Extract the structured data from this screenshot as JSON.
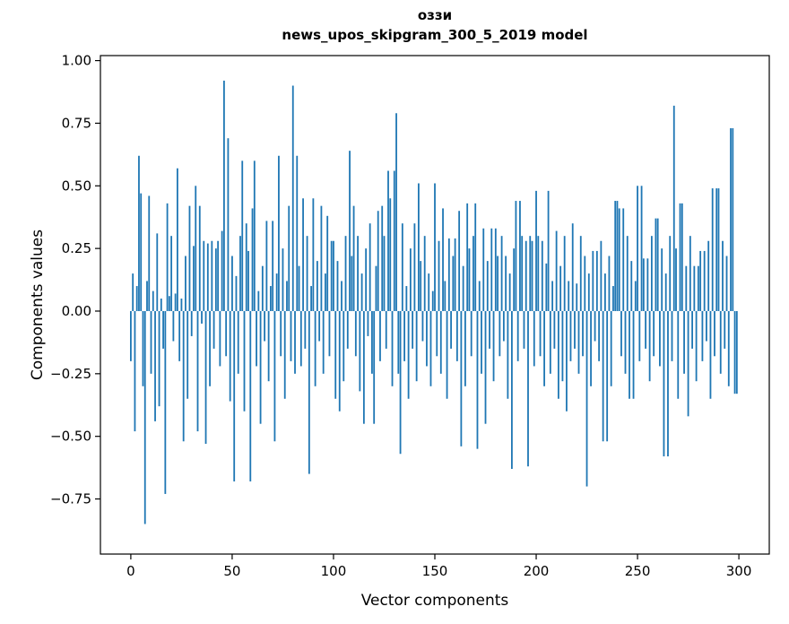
{
  "figure": {
    "title_line1": "оззи",
    "title_line2": "news_upos_skipgram_300_5_2019 model",
    "xlabel": "Vector components",
    "ylabel": "Components values"
  },
  "chart_data": {
    "type": "bar",
    "title": "оззи — news_upos_skipgram_300_5_2019 model",
    "xlabel": "Vector components",
    "ylabel": "Components values",
    "bar_color": "#1f77b4",
    "axis_color": "#000000",
    "grid": false,
    "legend": false,
    "n_components": 300,
    "xlim": [
      -15,
      315
    ],
    "ylim": [
      -0.97,
      1.02
    ],
    "xticks": [
      0,
      50,
      100,
      150,
      200,
      250,
      300
    ],
    "yticks": [
      -0.75,
      -0.5,
      -0.25,
      0.0,
      0.25,
      0.5,
      0.75,
      1.0
    ],
    "values": [
      -0.2,
      0.15,
      -0.48,
      0.1,
      0.62,
      0.47,
      -0.3,
      -0.85,
      0.12,
      0.46,
      -0.25,
      0.08,
      -0.44,
      0.31,
      -0.38,
      0.05,
      -0.15,
      -0.73,
      0.43,
      0.06,
      0.3,
      -0.12,
      0.07,
      0.57,
      -0.2,
      0.05,
      -0.52,
      0.22,
      -0.35,
      0.42,
      -0.1,
      0.26,
      0.5,
      -0.48,
      0.42,
      -0.05,
      0.28,
      -0.53,
      0.27,
      -0.3,
      0.28,
      -0.15,
      0.25,
      0.28,
      -0.22,
      0.32,
      0.92,
      -0.18,
      0.69,
      -0.36,
      0.22,
      -0.68,
      0.14,
      -0.25,
      0.3,
      0.6,
      -0.4,
      0.35,
      0.24,
      -0.68,
      0.41,
      0.6,
      -0.22,
      0.08,
      -0.45,
      0.18,
      -0.12,
      0.36,
      -0.28,
      0.1,
      0.36,
      -0.52,
      0.15,
      0.62,
      -0.18,
      0.25,
      -0.35,
      0.12,
      0.42,
      -0.2,
      0.9,
      -0.25,
      0.62,
      0.18,
      -0.22,
      0.45,
      -0.15,
      0.3,
      -0.65,
      0.1,
      0.45,
      -0.3,
      0.2,
      -0.12,
      0.42,
      -0.25,
      0.15,
      0.38,
      -0.18,
      0.28,
      0.28,
      -0.35,
      0.2,
      -0.4,
      0.12,
      -0.28,
      0.3,
      -0.15,
      0.64,
      0.22,
      0.42,
      -0.18,
      0.3,
      -0.32,
      0.15,
      -0.45,
      0.25,
      -0.1,
      0.35,
      -0.25,
      -0.45,
      0.18,
      0.4,
      -0.2,
      0.42,
      0.3,
      -0.15,
      0.56,
      0.45,
      -0.3,
      0.56,
      0.79,
      -0.25,
      -0.57,
      0.35,
      -0.2,
      0.1,
      -0.35,
      0.25,
      -0.15,
      0.35,
      -0.28,
      0.51,
      0.2,
      -0.12,
      0.3,
      -0.22,
      0.15,
      -0.3,
      0.08,
      0.51,
      -0.18,
      0.28,
      -0.25,
      0.41,
      0.12,
      -0.35,
      0.29,
      -0.15,
      0.22,
      0.29,
      -0.2,
      0.4,
      -0.54,
      0.18,
      -0.3,
      0.43,
      0.25,
      -0.18,
      0.3,
      0.43,
      -0.55,
      0.12,
      -0.25,
      0.33,
      -0.45,
      0.2,
      -0.15,
      0.33,
      -0.28,
      0.33,
      0.22,
      -0.18,
      0.3,
      -0.12,
      0.22,
      -0.35,
      0.15,
      -0.63,
      0.25,
      0.44,
      -0.2,
      0.44,
      0.3,
      -0.15,
      0.28,
      -0.62,
      0.3,
      0.28,
      -0.22,
      0.48,
      0.3,
      -0.18,
      0.28,
      -0.3,
      0.19,
      0.48,
      -0.25,
      0.12,
      -0.15,
      0.32,
      -0.35,
      0.18,
      -0.28,
      0.3,
      -0.4,
      0.12,
      -0.2,
      0.35,
      -0.15,
      0.11,
      -0.25,
      0.3,
      -0.18,
      0.22,
      -0.7,
      0.15,
      -0.3,
      0.24,
      -0.12,
      0.24,
      -0.2,
      0.28,
      -0.52,
      0.15,
      -0.52,
      0.22,
      -0.3,
      0.1,
      0.44,
      0.44,
      0.41,
      -0.18,
      0.41,
      -0.25,
      0.3,
      -0.35,
      0.2,
      -0.35,
      0.12,
      0.5,
      -0.2,
      0.5,
      0.21,
      -0.15,
      0.21,
      -0.28,
      0.3,
      -0.18,
      0.37,
      0.37,
      -0.22,
      0.25,
      -0.58,
      0.15,
      -0.58,
      0.3,
      -0.2,
      0.82,
      0.25,
      -0.35,
      0.43,
      0.43,
      -0.25,
      0.18,
      -0.42,
      0.3,
      -0.15,
      0.18,
      -0.28,
      0.18,
      0.24,
      -0.2,
      0.24,
      -0.12,
      0.28,
      -0.35,
      0.49,
      -0.18,
      0.49,
      0.49,
      -0.25,
      0.28,
      -0.15,
      0.22,
      -0.3,
      0.73,
      0.73,
      -0.33,
      -0.33
    ]
  }
}
